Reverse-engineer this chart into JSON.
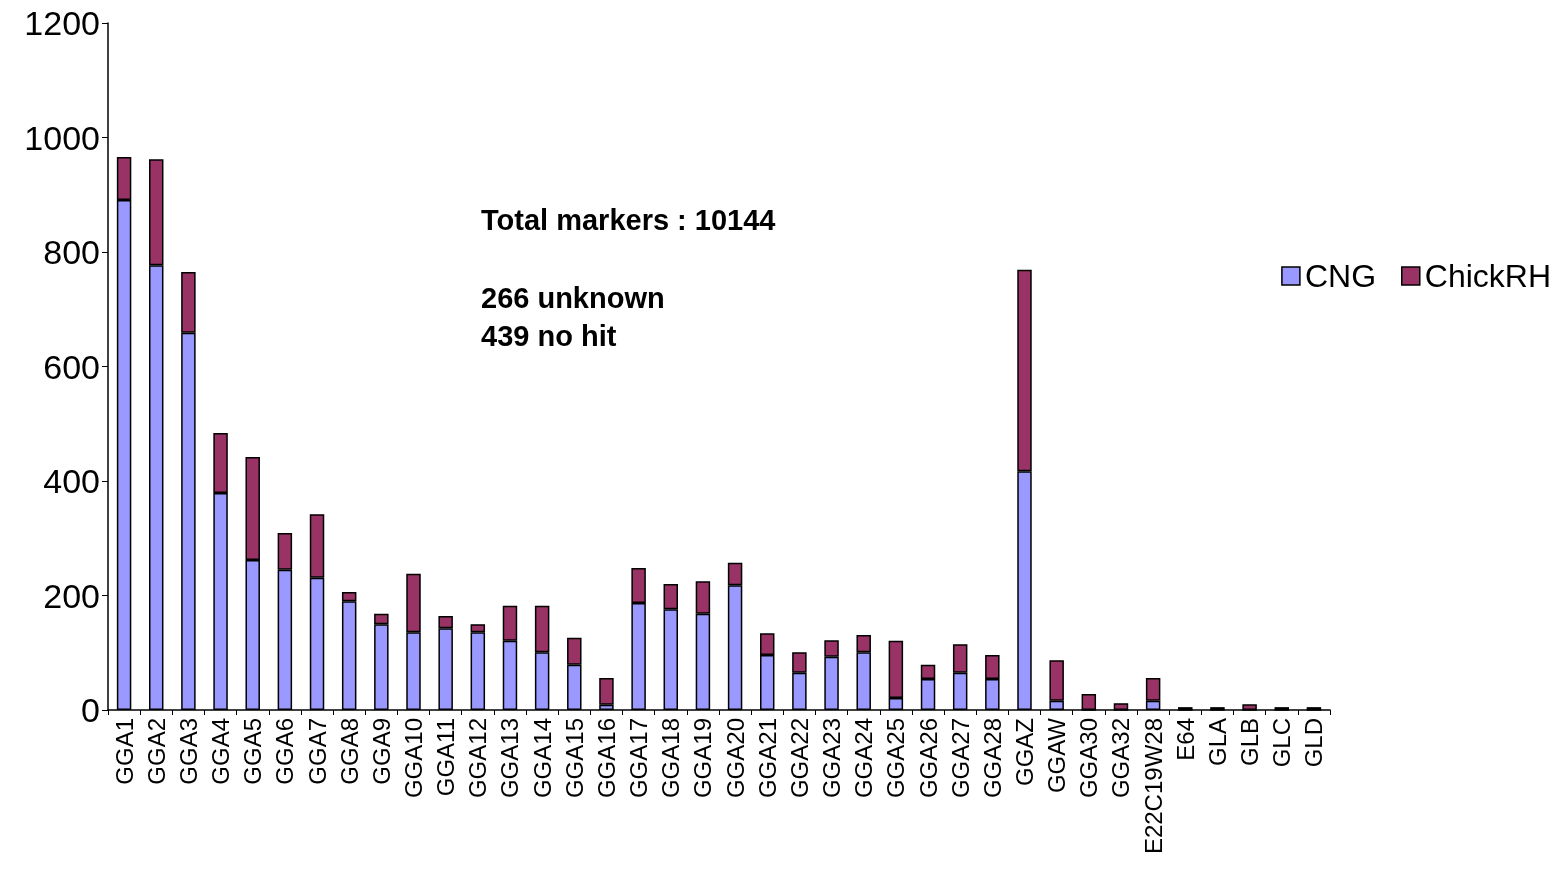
{
  "chart_data": {
    "type": "bar",
    "stacked": true,
    "categories": [
      "GGA1",
      "GGA2",
      "GGA3",
      "GGA4",
      "GGA5",
      "GGA6",
      "GGA7",
      "GGA8",
      "GGA9",
      "GGA10",
      "GGA11",
      "GGA12",
      "GGA13",
      "GGA14",
      "GGA15",
      "GGA16",
      "GGA17",
      "GGA18",
      "GGA19",
      "GGA20",
      "GGA21",
      "GGA22",
      "GGA23",
      "GGA24",
      "GGA25",
      "GGA26",
      "GGA27",
      "GGA28",
      "GGAZ",
      "GGAW",
      "GGA30",
      "GGA32",
      "E22C19W28",
      "E64",
      "GLA",
      "GLB",
      "GLC",
      "GLD"
    ],
    "series": [
      {
        "name": "CNG",
        "color": "#9999ff",
        "values": [
          891,
          777,
          659,
          379,
          262,
          245,
          231,
          190,
          150,
          136,
          143,
          136,
          121,
          101,
          79,
          9,
          187,
          176,
          168,
          218,
          96,
          65,
          93,
          101,
          21,
          54,
          65,
          54,
          417,
          16,
          0,
          0,
          16,
          0,
          0,
          0,
          0,
          0
        ]
      },
      {
        "name": "ChickRH",
        "color": "#993366",
        "values": [
          75,
          185,
          106,
          105,
          180,
          64,
          111,
          16,
          18,
          102,
          21,
          14,
          61,
          81,
          47,
          47,
          61,
          44,
          57,
          39,
          38,
          36,
          29,
          30,
          100,
          25,
          50,
          42,
          352,
          71,
          28,
          12,
          40,
          5,
          5,
          10,
          5,
          5
        ]
      }
    ],
    "ylim": [
      0,
      1200
    ],
    "yticks": [
      0,
      200,
      400,
      600,
      800,
      1000,
      1200
    ],
    "grid": false,
    "legend": "right",
    "annotations": [
      "Total markers : 10144",
      "266 unknown",
      "439 no hit"
    ]
  }
}
